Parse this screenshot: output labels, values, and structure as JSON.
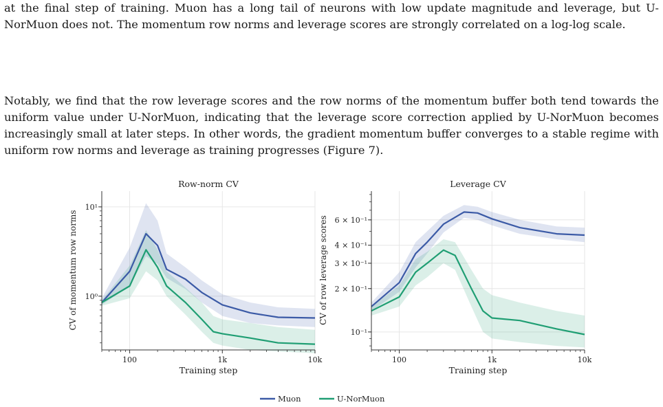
{
  "paragraphs": [
    "at the final step of training. Muon has a long tail of neurons with low update magnitude and leverage, but U-NorMuon does not. The momentum row norms and leverage scores are strongly correlated on a log-log scale.",
    "Notably, we find that the row leverage scores and the row norms of the momentum buffer both tend towards the uniform value under U-NorMuon, indicating that the leverage score correction applied by U-NorMuon becomes increasingly small at later steps. In other words, the gradient momentum buffer converges to a stable regime with uniform row norms and leverage as training progresses (Figure 7)."
  ],
  "legend": [
    {
      "name": "Muon",
      "color": "#3b5aa6"
    },
    {
      "name": "U-NorMuon",
      "color": "#1f9e73"
    }
  ],
  "chart_data": [
    {
      "type": "line",
      "title": "Row-norm CV",
      "xlabel": "Training step",
      "ylabel": "CV of momentum row norms",
      "xscale": "log",
      "yscale": "log",
      "xlim": [
        50,
        10000
      ],
      "ylim": [
        0.25,
        15
      ],
      "xticks": [
        {
          "v": 100,
          "label": "100"
        },
        {
          "v": 1000,
          "label": "1k"
        },
        {
          "v": 10000,
          "label": "10k"
        }
      ],
      "yticks": [
        {
          "v": 1,
          "label": "10⁰"
        },
        {
          "v": 10,
          "label": "10¹"
        }
      ],
      "grid": true,
      "series": [
        {
          "name": "Muon",
          "color": "#3b5aa6",
          "x": [
            50,
            100,
            150,
            200,
            250,
            400,
            600,
            1000,
            2000,
            4000,
            10000
          ],
          "y": [
            0.85,
            1.9,
            5.0,
            3.7,
            2.0,
            1.55,
            1.1,
            0.8,
            0.65,
            0.58,
            0.57
          ],
          "lower": [
            0.8,
            1.3,
            2.8,
            2.3,
            1.6,
            1.2,
            0.85,
            0.6,
            0.5,
            0.47,
            0.45
          ],
          "upper": [
            0.95,
            3.5,
            11.0,
            7.0,
            3.0,
            2.1,
            1.5,
            1.05,
            0.85,
            0.75,
            0.72
          ]
        },
        {
          "name": "U-NorMuon",
          "color": "#1f9e73",
          "x": [
            50,
            100,
            150,
            200,
            250,
            400,
            600,
            800,
            1000,
            2000,
            4000,
            10000
          ],
          "y": [
            0.85,
            1.3,
            3.3,
            2.1,
            1.3,
            0.85,
            0.55,
            0.4,
            0.38,
            0.34,
            0.3,
            0.29
          ],
          "lower": [
            0.78,
            0.95,
            1.9,
            1.5,
            1.0,
            0.62,
            0.4,
            0.3,
            0.28,
            0.25,
            0.24,
            0.23
          ],
          "upper": [
            0.9,
            2.2,
            5.5,
            3.3,
            1.9,
            1.25,
            0.85,
            0.6,
            0.55,
            0.5,
            0.45,
            0.42
          ]
        }
      ]
    },
    {
      "type": "line",
      "title": "Leverage CV",
      "xlabel": "Training step",
      "ylabel": "CV of row leverage scores",
      "xscale": "log",
      "yscale": "log",
      "xlim": [
        50,
        10000
      ],
      "ylim": [
        0.075,
        0.95
      ],
      "xticks": [
        {
          "v": 100,
          "label": "100"
        },
        {
          "v": 1000,
          "label": "1k"
        },
        {
          "v": 10000,
          "label": "10k"
        }
      ],
      "yticks": [
        {
          "v": 0.1,
          "label": "10⁻¹"
        },
        {
          "v": 0.2,
          "label": "2 × 10⁻¹"
        },
        {
          "v": 0.3,
          "label": "3 × 10⁻¹"
        },
        {
          "v": 0.4,
          "label": "4 × 10⁻¹"
        },
        {
          "v": 0.6,
          "label": "6 × 10⁻¹"
        }
      ],
      "grid": true,
      "series": [
        {
          "name": "Muon",
          "color": "#3b5aa6",
          "x": [
            50,
            100,
            150,
            200,
            300,
            500,
            700,
            1000,
            2000,
            5000,
            10000
          ],
          "y": [
            0.15,
            0.22,
            0.35,
            0.42,
            0.56,
            0.68,
            0.67,
            0.61,
            0.53,
            0.48,
            0.47
          ],
          "lower": [
            0.14,
            0.19,
            0.28,
            0.35,
            0.49,
            0.62,
            0.6,
            0.55,
            0.48,
            0.44,
            0.42
          ],
          "upper": [
            0.16,
            0.26,
            0.42,
            0.5,
            0.64,
            0.76,
            0.74,
            0.68,
            0.6,
            0.54,
            0.53
          ]
        },
        {
          "name": "U-NorMuon",
          "color": "#1f9e73",
          "x": [
            50,
            100,
            150,
            200,
            300,
            400,
            600,
            800,
            1000,
            2000,
            5000,
            10000
          ],
          "y": [
            0.14,
            0.175,
            0.26,
            0.3,
            0.37,
            0.34,
            0.2,
            0.14,
            0.125,
            0.12,
            0.105,
            0.096
          ],
          "lower": [
            0.13,
            0.15,
            0.21,
            0.24,
            0.3,
            0.27,
            0.15,
            0.1,
            0.09,
            0.085,
            0.08,
            0.078
          ],
          "upper": [
            0.15,
            0.21,
            0.32,
            0.36,
            0.44,
            0.42,
            0.27,
            0.2,
            0.18,
            0.16,
            0.14,
            0.13
          ]
        }
      ]
    }
  ]
}
